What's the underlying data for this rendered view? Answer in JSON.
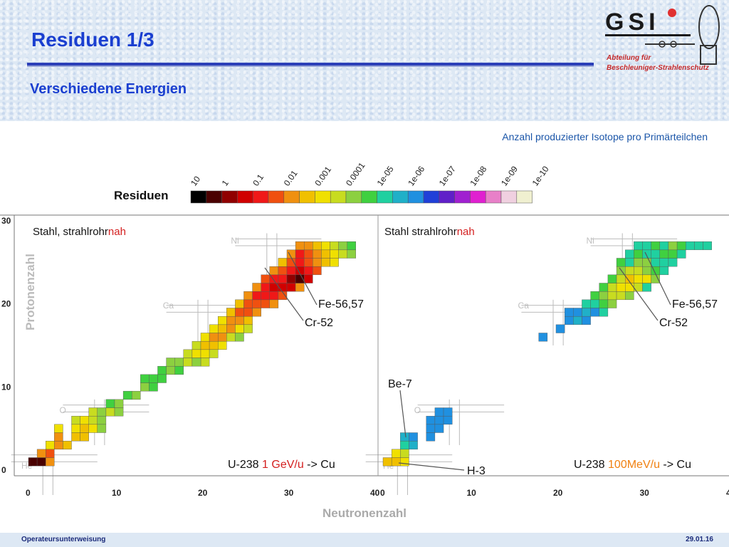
{
  "slide": {
    "title": "Residuen 1/3",
    "subtitle": "Verschiedene Energien",
    "footer_left": "Operateursunterweisung",
    "footer_right": "29.01.16",
    "colors": {
      "title": "#1a3fd0",
      "accent_red": "#d42020",
      "accent_orange": "#f08010"
    }
  },
  "logo": {
    "text": "GSI",
    "line1": "Abteilung für",
    "line2": "Beschleuniger-Strahlenschutz"
  },
  "chart_data": {
    "type": "heatmap",
    "colorbar": {
      "title": "Anzahl produzierter Isotope pro Primärteilchen",
      "label": "Residuen",
      "ticks": [
        "10",
        "1",
        "0.1",
        "0.01",
        "0.001",
        "0.0001",
        "1e-05",
        "1e-06",
        "1e-07",
        "1e-08",
        "1e-09",
        "1e-10"
      ],
      "colors": [
        "#000000",
        "#4a0000",
        "#900000",
        "#d00000",
        "#f01818",
        "#f05010",
        "#f09010",
        "#f0c000",
        "#f0e000",
        "#c8dc20",
        "#8cd040",
        "#40d040",
        "#20d0a0",
        "#20b0c8",
        "#2090e0",
        "#2040d8",
        "#6020c8",
        "#a020d0",
        "#e020d0",
        "#e880c8",
        "#f0d0e0",
        "#f0f0d0"
      ]
    },
    "xlabel": "Neutronenzahl",
    "ylabel": "Protonenzahl",
    "xlim": [
      0,
      40
    ],
    "ylim": [
      0,
      30
    ],
    "xticks": [
      "0",
      "10",
      "20",
      "30",
      "40"
    ],
    "yticks": [
      "0",
      "10",
      "20",
      "30"
    ],
    "element_labels": [
      "He",
      "O",
      "Ca",
      "Ni"
    ],
    "panels": [
      {
        "label_black": "Stahl, strahlrohr",
        "label_red": "nah",
        "annotations": [
          "Fe-56,57",
          "Cr-52"
        ],
        "reaction_prefix": "U-238",
        "reaction_energy": "1 GeV/u",
        "reaction_suffix": "-> Cu",
        "cells": [
          [
            0,
            1,
            1
          ],
          [
            1,
            1,
            1
          ],
          [
            2,
            1,
            6
          ],
          [
            1,
            2,
            6
          ],
          [
            2,
            2,
            5
          ],
          [
            2,
            3,
            8
          ],
          [
            3,
            3,
            6
          ],
          [
            3,
            4,
            6
          ],
          [
            3,
            5,
            8
          ],
          [
            4,
            3,
            7
          ],
          [
            5,
            4,
            7
          ],
          [
            5,
            5,
            8
          ],
          [
            5,
            6,
            9
          ],
          [
            6,
            4,
            7
          ],
          [
            6,
            5,
            7
          ],
          [
            6,
            6,
            8
          ],
          [
            7,
            5,
            8
          ],
          [
            7,
            6,
            9
          ],
          [
            8,
            5,
            10
          ],
          [
            7,
            7,
            9
          ],
          [
            8,
            6,
            10
          ],
          [
            8,
            7,
            10
          ],
          [
            9,
            7,
            9
          ],
          [
            9,
            8,
            11
          ],
          [
            10,
            7,
            10
          ],
          [
            10,
            8,
            10
          ],
          [
            11,
            9,
            11
          ],
          [
            12,
            9,
            10
          ],
          [
            13,
            10,
            10
          ],
          [
            14,
            10,
            11
          ],
          [
            13,
            11,
            11
          ],
          [
            14,
            11,
            11
          ],
          [
            15,
            11,
            11
          ],
          [
            15,
            12,
            11
          ],
          [
            16,
            12,
            10
          ],
          [
            16,
            13,
            10
          ],
          [
            17,
            12,
            11
          ],
          [
            17,
            13,
            10
          ],
          [
            18,
            13,
            9
          ],
          [
            18,
            14,
            9
          ],
          [
            19,
            14,
            8
          ],
          [
            19,
            15,
            9
          ],
          [
            20,
            14,
            8
          ],
          [
            20,
            15,
            7
          ],
          [
            20,
            16,
            8
          ],
          [
            21,
            15,
            7
          ],
          [
            21,
            16,
            6
          ],
          [
            21,
            17,
            8
          ],
          [
            22,
            16,
            6
          ],
          [
            22,
            17,
            7
          ],
          [
            22,
            18,
            8
          ],
          [
            23,
            17,
            6
          ],
          [
            23,
            18,
            6
          ],
          [
            23,
            19,
            7
          ],
          [
            24,
            17,
            8
          ],
          [
            24,
            18,
            6
          ],
          [
            24,
            19,
            5
          ],
          [
            24,
            20,
            7
          ],
          [
            25,
            18,
            7
          ],
          [
            25,
            19,
            5
          ],
          [
            25,
            20,
            5
          ],
          [
            25,
            21,
            6
          ],
          [
            26,
            19,
            6
          ],
          [
            26,
            20,
            5
          ],
          [
            26,
            21,
            4
          ],
          [
            26,
            22,
            6
          ],
          [
            27,
            20,
            5
          ],
          [
            27,
            21,
            4
          ],
          [
            27,
            22,
            4
          ],
          [
            27,
            23,
            5
          ],
          [
            28,
            20,
            6
          ],
          [
            28,
            21,
            4
          ],
          [
            28,
            22,
            3
          ],
          [
            28,
            23,
            4
          ],
          [
            28,
            24,
            6
          ],
          [
            29,
            21,
            5
          ],
          [
            29,
            22,
            3
          ],
          [
            29,
            23,
            4
          ],
          [
            29,
            24,
            5
          ],
          [
            29,
            25,
            7
          ],
          [
            30,
            22,
            3
          ],
          [
            30,
            23,
            2
          ],
          [
            30,
            24,
            4
          ],
          [
            30,
            25,
            5
          ],
          [
            30,
            26,
            6
          ],
          [
            31,
            22,
            6
          ],
          [
            31,
            23,
            1
          ],
          [
            31,
            24,
            3
          ],
          [
            31,
            25,
            4
          ],
          [
            31,
            26,
            4
          ],
          [
            31,
            27,
            6
          ],
          [
            32,
            23,
            3
          ],
          [
            32,
            24,
            4
          ],
          [
            32,
            25,
            5
          ],
          [
            32,
            26,
            5
          ],
          [
            32,
            27,
            6
          ],
          [
            33,
            24,
            5
          ],
          [
            33,
            25,
            6
          ],
          [
            33,
            26,
            6
          ],
          [
            33,
            27,
            7
          ],
          [
            34,
            25,
            7
          ],
          [
            34,
            26,
            7
          ],
          [
            34,
            27,
            8
          ],
          [
            35,
            25,
            8
          ],
          [
            35,
            26,
            8
          ],
          [
            35,
            27,
            9
          ],
          [
            36,
            26,
            9
          ],
          [
            36,
            27,
            10
          ],
          [
            37,
            26,
            10
          ],
          [
            37,
            27,
            11
          ],
          [
            20,
            13,
            9
          ],
          [
            21,
            14,
            9
          ],
          [
            22,
            15,
            8
          ],
          [
            19,
            13,
            10
          ],
          [
            23,
            16,
            9
          ],
          [
            24,
            16,
            10
          ],
          [
            25,
            17,
            9
          ]
        ]
      },
      {
        "label_black": "Stahl strahlrohr",
        "label_red": "nah",
        "annotations": [
          "Fe-56,57",
          "Cr-52",
          "Be-7",
          "H-3"
        ],
        "reaction_prefix": "U-238",
        "reaction_energy": "100MeV/u",
        "reaction_suffix": "-> Cu",
        "cells": [
          [
            0,
            1,
            7
          ],
          [
            1,
            1,
            7
          ],
          [
            1,
            2,
            8
          ],
          [
            2,
            1,
            8
          ],
          [
            2,
            2,
            9
          ],
          [
            2,
            3,
            12
          ],
          [
            3,
            3,
            13
          ],
          [
            3,
            4,
            14
          ],
          [
            2,
            4,
            13
          ],
          [
            5,
            4,
            14
          ],
          [
            5,
            5,
            14
          ],
          [
            5,
            6,
            14
          ],
          [
            6,
            5,
            14
          ],
          [
            6,
            6,
            14
          ],
          [
            6,
            7,
            14
          ],
          [
            7,
            6,
            14
          ],
          [
            7,
            7,
            14
          ],
          [
            18,
            16,
            14
          ],
          [
            20,
            17,
            14
          ],
          [
            21,
            18,
            14
          ],
          [
            22,
            18,
            13
          ],
          [
            21,
            19,
            14
          ],
          [
            22,
            19,
            14
          ],
          [
            23,
            19,
            13
          ],
          [
            23,
            20,
            12
          ],
          [
            24,
            20,
            12
          ],
          [
            24,
            21,
            11
          ],
          [
            25,
            19,
            12
          ],
          [
            25,
            20,
            11
          ],
          [
            25,
            21,
            10
          ],
          [
            25,
            22,
            11
          ],
          [
            26,
            20,
            10
          ],
          [
            26,
            21,
            9
          ],
          [
            26,
            22,
            9
          ],
          [
            26,
            23,
            11
          ],
          [
            27,
            21,
            9
          ],
          [
            27,
            22,
            8
          ],
          [
            27,
            23,
            9
          ],
          [
            27,
            24,
            10
          ],
          [
            28,
            21,
            10
          ],
          [
            28,
            22,
            8
          ],
          [
            28,
            23,
            7
          ],
          [
            28,
            24,
            9
          ],
          [
            28,
            25,
            12
          ],
          [
            29,
            22,
            9
          ],
          [
            29,
            23,
            8
          ],
          [
            29,
            24,
            9
          ],
          [
            29,
            25,
            10
          ],
          [
            29,
            26,
            11
          ],
          [
            30,
            22,
            12
          ],
          [
            30,
            23,
            8
          ],
          [
            30,
            24,
            10
          ],
          [
            30,
            25,
            10
          ],
          [
            30,
            26,
            12
          ],
          [
            30,
            27,
            12
          ],
          [
            31,
            23,
            10
          ],
          [
            31,
            24,
            11
          ],
          [
            31,
            25,
            12
          ],
          [
            31,
            26,
            12
          ],
          [
            31,
            27,
            11
          ],
          [
            32,
            24,
            12
          ],
          [
            32,
            25,
            12
          ],
          [
            32,
            26,
            11
          ],
          [
            32,
            27,
            12
          ],
          [
            33,
            25,
            12
          ],
          [
            33,
            26,
            11
          ],
          [
            33,
            27,
            10
          ],
          [
            34,
            26,
            12
          ],
          [
            34,
            27,
            11
          ],
          [
            35,
            27,
            12
          ],
          [
            36,
            27,
            12
          ],
          [
            37,
            27,
            12
          ],
          [
            27,
            25,
            11
          ],
          [
            28,
            26,
            12
          ],
          [
            29,
            27,
            12
          ],
          [
            24,
            19,
            14
          ],
          [
            23,
            18,
            14
          ]
        ]
      }
    ]
  }
}
